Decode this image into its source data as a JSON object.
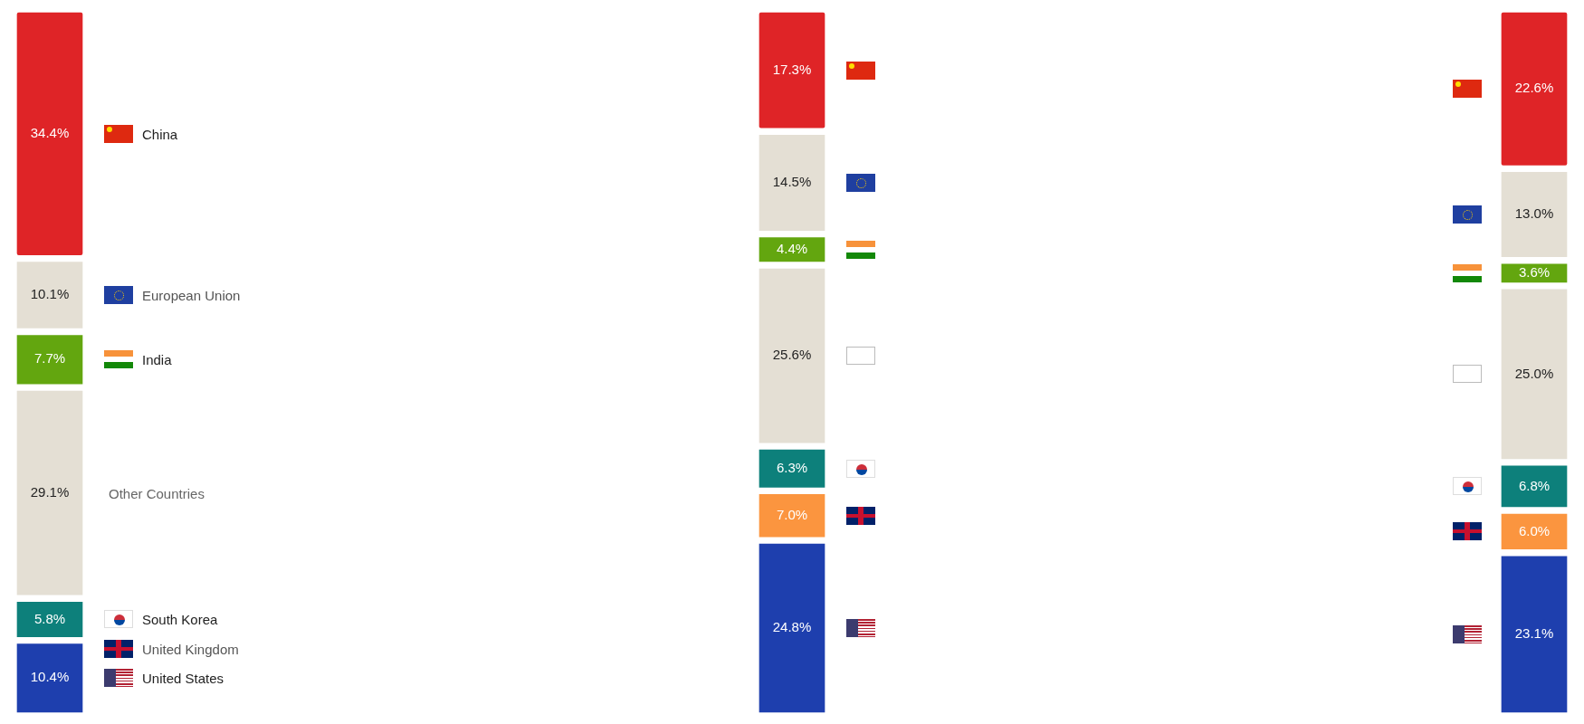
{
  "chart_data": [
    {
      "type": "other",
      "categories": [
        "China",
        "European Union",
        "India",
        "Other Countries",
        "South Korea",
        "United Kingdom",
        "United States"
      ],
      "series": [
        {
          "colors": [
            "#df2427",
            "#e4dfd4",
            "#63a60f",
            "#e4dfd4",
            "#0d807b",
            "#fb953f",
            "#1e3fae"
          ],
          "values": [
            34.4,
            10.1,
            7.7,
            29.1,
            5.8,
            null,
            10.4
          ],
          "value_labels": [
            "34.4%",
            "10.1%",
            "7.7%",
            "29.1%",
            "5.8%",
            null,
            "10.4%"
          ]
        }
      ]
    },
    {
      "type": "other",
      "categories": [
        null,
        null,
        null,
        null,
        null,
        null,
        null
      ],
      "series": [
        {
          "colors": [
            "#df2427",
            "#e4dfd4",
            "#63a60f",
            "#e4dfd4",
            "#0d807b",
            "#fb953f",
            "#1e3fae"
          ],
          "values": [
            17.3,
            14.5,
            4.4,
            25.6,
            6.3,
            7.0,
            24.8
          ],
          "value_labels": [
            "17.3%",
            "14.5%",
            "4.4%",
            "25.6%",
            "6.3%",
            "7.0%",
            "24.8%"
          ]
        }
      ]
    },
    {
      "type": "other",
      "categories": [
        null,
        null,
        null,
        null,
        null,
        null,
        null
      ],
      "series": [
        {
          "colors": [
            "#df2427",
            "#e4dfd4",
            "#63a60f",
            "#e4dfd4",
            "#0d807b",
            "#fb953f",
            "#1e3fae"
          ],
          "values": [
            22.6,
            13.0,
            3.6,
            25.0,
            6.8,
            6.0,
            23.1
          ],
          "value_labels": [
            "22.6%",
            "13.0%",
            "3.6%",
            "25.0%",
            "6.8%",
            "6.0%",
            "23.1%"
          ]
        }
      ]
    }
  ]
}
